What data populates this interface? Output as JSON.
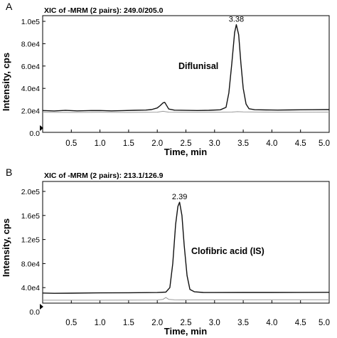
{
  "chart_data": [
    {
      "type": "line",
      "panel_label": "A",
      "header": "XIC of -MRM (2 pairs): 249.0/205.0",
      "xlabel": "Time, min",
      "ylabel": "Intensity, cps",
      "xlim": [
        0,
        5.0
      ],
      "ylim": [
        0,
        100000
      ],
      "x_ticks": [
        0.5,
        1.0,
        1.5,
        2.0,
        2.5,
        3.0,
        3.5,
        4.0,
        4.5,
        5.0
      ],
      "x_tick_labels": [
        "0.5",
        "1.0",
        "1.5",
        "2.0",
        "2.5",
        "3.0",
        "3.5",
        "4.0",
        "4.5",
        "5.0"
      ],
      "y_ticks": [
        0,
        20000,
        40000,
        60000,
        80000,
        100000
      ],
      "y_tick_labels": [
        "0.0",
        "2.0e4",
        "4.0e4",
        "6.0e4",
        "8.0e4",
        "1.0e5"
      ],
      "peak_label": "3.38",
      "peak_time": 3.38,
      "annotation": "Diflunisal",
      "series": [
        {
          "color": "#111111",
          "x": [
            0.0,
            0.2,
            0.4,
            0.6,
            0.8,
            1.0,
            1.2,
            1.4,
            1.6,
            1.8,
            1.9,
            2.0,
            2.05,
            2.1,
            2.13,
            2.16,
            2.2,
            2.3,
            2.5,
            2.7,
            2.9,
            3.1,
            3.2,
            3.25,
            3.3,
            3.35,
            3.38,
            3.42,
            3.46,
            3.5,
            3.55,
            3.6,
            3.7,
            3.9,
            4.1,
            4.3,
            4.5,
            4.7,
            5.0
          ],
          "y": [
            20200,
            19800,
            20300,
            19900,
            20100,
            20200,
            19900,
            20100,
            20400,
            20600,
            21000,
            22500,
            24500,
            27000,
            27500,
            25000,
            21500,
            20500,
            20300,
            20200,
            20400,
            20800,
            23000,
            36000,
            62000,
            90000,
            97000,
            88000,
            62000,
            40000,
            26000,
            21800,
            20900,
            20700,
            20600,
            20700,
            20800,
            20900,
            21000
          ]
        },
        {
          "color": "#9a9a9a",
          "x": [
            0.0,
            0.5,
            1.0,
            1.5,
            2.0,
            2.1,
            2.2,
            2.5,
            3.0,
            3.3,
            3.4,
            3.5,
            4.0,
            4.5,
            5.0
          ],
          "y": [
            18600,
            18500,
            18600,
            18500,
            18700,
            19500,
            18700,
            18600,
            18600,
            18800,
            19200,
            18900,
            18700,
            18700,
            18800
          ]
        }
      ]
    },
    {
      "type": "line",
      "panel_label": "B",
      "header": "XIC of -MRM (2 pairs): 213.1/126.9",
      "xlabel": "Time, min",
      "ylabel": "Intensity, cps",
      "xlim": [
        0,
        5.0
      ],
      "ylim": [
        0,
        200000
      ],
      "x_ticks": [
        0.5,
        1.0,
        1.5,
        2.0,
        2.5,
        3.0,
        3.5,
        4.0,
        4.5,
        5.0
      ],
      "x_tick_labels": [
        "0.5",
        "1.0",
        "1.5",
        "2.0",
        "2.5",
        "3.0",
        "3.5",
        "4.0",
        "4.5",
        "5.0"
      ],
      "y_ticks": [
        0,
        40000,
        80000,
        120000,
        160000,
        200000
      ],
      "y_tick_labels": [
        "0.0",
        "4.0e4",
        "8.0e4",
        "1.2e5",
        "1.6e5",
        "2.0e5"
      ],
      "peak_label": "2.39",
      "peak_time": 2.39,
      "annotation": "Clofibric acid (IS)",
      "series": [
        {
          "color": "#111111",
          "x": [
            0.0,
            0.2,
            0.5,
            1.0,
            1.5,
            2.0,
            2.15,
            2.22,
            2.27,
            2.32,
            2.36,
            2.39,
            2.43,
            2.47,
            2.52,
            2.57,
            2.65,
            2.8,
            3.0,
            3.5,
            4.0,
            4.5,
            5.0
          ],
          "y": [
            31000,
            30500,
            30800,
            31200,
            31500,
            31800,
            32500,
            40000,
            80000,
            145000,
            175000,
            182000,
            160000,
            110000,
            60000,
            37000,
            33000,
            32000,
            31800,
            31900,
            32000,
            32100,
            32200
          ]
        },
        {
          "color": "#9a9a9a",
          "x": [
            0.0,
            0.5,
            1.0,
            1.5,
            2.0,
            2.1,
            2.15,
            2.2,
            2.3,
            2.5,
            3.0,
            3.5,
            4.0,
            4.5,
            5.0
          ],
          "y": [
            19000,
            19100,
            19000,
            19200,
            19400,
            20500,
            23500,
            20500,
            19600,
            19500,
            19600,
            19700,
            19800,
            19800,
            19900
          ]
        }
      ]
    }
  ]
}
